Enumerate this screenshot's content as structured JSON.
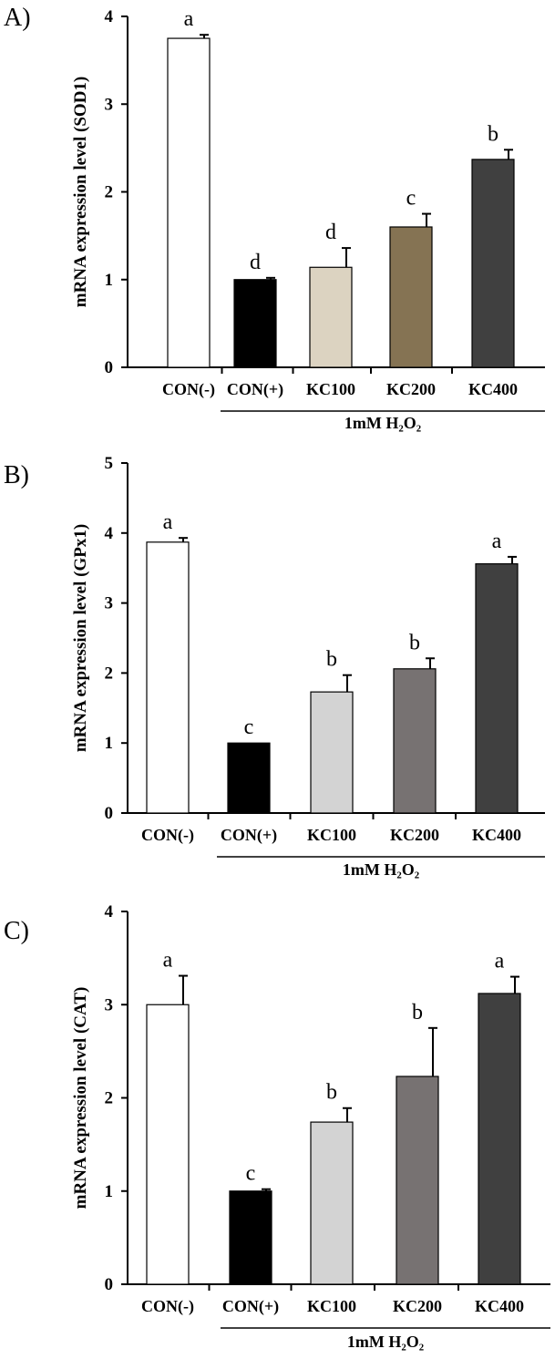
{
  "chart_data": [
    {
      "type": "bar",
      "panel_label": "A)",
      "ylabel": "mRNA expression level (SOD1)",
      "ylim": [
        0,
        4
      ],
      "yticks": [
        "0",
        "1",
        "2",
        "3",
        "4"
      ],
      "categories": [
        "CON(-)",
        "CON(+)",
        "KC100",
        "KC200",
        "KC400"
      ],
      "values": [
        3.75,
        1.0,
        1.14,
        1.6,
        2.37
      ],
      "errors": [
        0.04,
        0.02,
        0.22,
        0.15,
        0.11
      ],
      "sig_letters": [
        "a",
        "d",
        "d",
        "c",
        "b"
      ],
      "colors": [
        "#ffffff",
        "#000000",
        "#dcd3c1",
        "#857353",
        "#404040"
      ],
      "treatment_label": "1mM H₂O₂",
      "grid": false
    },
    {
      "type": "bar",
      "panel_label": "B)",
      "ylabel": "mRNA expression level (GPx1)",
      "ylim": [
        0,
        5
      ],
      "yticks": [
        "0",
        "1",
        "2",
        "3",
        "4",
        "5"
      ],
      "categories": [
        "CON(-)",
        "CON(+)",
        "KC100",
        "KC200",
        "KC400"
      ],
      "values": [
        3.87,
        1.0,
        1.73,
        2.06,
        3.56
      ],
      "errors": [
        0.06,
        0.0,
        0.24,
        0.15,
        0.1
      ],
      "sig_letters": [
        "a",
        "c",
        "b",
        "b",
        "a"
      ],
      "colors": [
        "#ffffff",
        "#000000",
        "#d3d3d3",
        "#777272",
        "#404040"
      ],
      "treatment_label": "1mM H₂O₂",
      "grid": false
    },
    {
      "type": "bar",
      "panel_label": "C)",
      "ylabel": "mRNA expression level (CAT)",
      "ylim": [
        0,
        4
      ],
      "yticks": [
        "0",
        "1",
        "2",
        "3",
        "4"
      ],
      "categories": [
        "CON(-)",
        "CON(+)",
        "KC100",
        "KC200",
        "KC400"
      ],
      "values": [
        3.0,
        1.0,
        1.74,
        2.23,
        3.12
      ],
      "errors": [
        0.31,
        0.02,
        0.15,
        0.52,
        0.18
      ],
      "sig_letters": [
        "a",
        "c",
        "b",
        "b",
        "a"
      ],
      "colors": [
        "#ffffff",
        "#000000",
        "#d3d3d3",
        "#777272",
        "#404040"
      ],
      "treatment_label": "1mM H₂O₂",
      "grid": false
    }
  ]
}
